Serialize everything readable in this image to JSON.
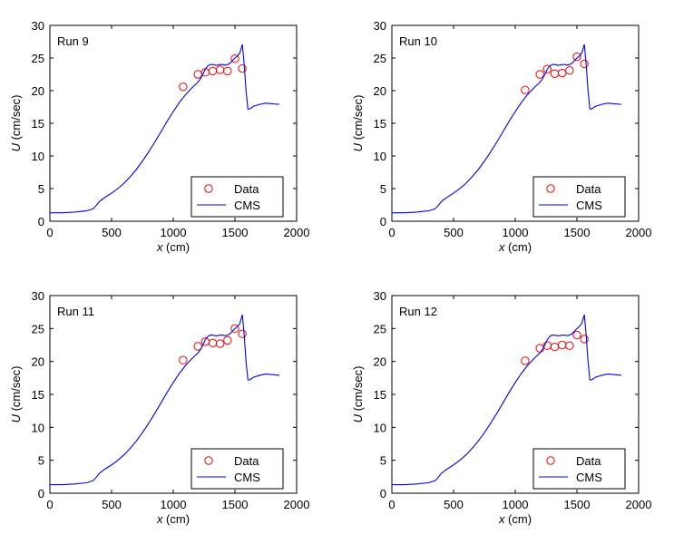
{
  "chart_data": [
    {
      "type": "line",
      "title": "Run 9",
      "xlabel_var": "x",
      "xlabel_unit": " (cm)",
      "ylabel_var": "U",
      "ylabel_unit": " (cm/sec)",
      "xlim": [
        0,
        2000
      ],
      "ylim": [
        0,
        30
      ],
      "xticks": [
        "0",
        "500",
        "1000",
        "1500",
        "2000"
      ],
      "yticks": [
        "0",
        "5",
        "10",
        "15",
        "20",
        "25",
        "30"
      ],
      "legend": {
        "location": "bottom-right",
        "entries": [
          "Data",
          "CMS"
        ]
      },
      "series": [
        {
          "name": "Data",
          "kind": "scatter",
          "color": "#ff0000",
          "x": [
            1080,
            1200,
            1260,
            1320,
            1380,
            1440,
            1500,
            1560
          ],
          "y": [
            20.6,
            22.5,
            22.8,
            23.0,
            23.2,
            23.0,
            24.9,
            23.4
          ]
        },
        {
          "name": "CMS",
          "kind": "line",
          "color": "#0000ff",
          "x": [
            0,
            100,
            200,
            300,
            350,
            380,
            400,
            420,
            450,
            500,
            550,
            600,
            650,
            700,
            750,
            800,
            850,
            900,
            950,
            1000,
            1050,
            1100,
            1150,
            1200,
            1220,
            1240,
            1260,
            1280,
            1300,
            1320,
            1340,
            1360,
            1380,
            1400,
            1420,
            1440,
            1460,
            1480,
            1500,
            1520,
            1540,
            1560,
            1575,
            1590,
            1605,
            1620,
            1650,
            1700,
            1750,
            1800,
            1860
          ],
          "y": [
            1.3,
            1.3,
            1.4,
            1.6,
            1.9,
            2.5,
            3.0,
            3.3,
            3.7,
            4.3,
            5.0,
            5.8,
            6.8,
            7.9,
            9.2,
            10.6,
            12.1,
            13.7,
            15.3,
            16.8,
            18.2,
            19.4,
            20.4,
            21.3,
            21.8,
            22.5,
            23.3,
            23.8,
            24.0,
            24.0,
            23.9,
            23.9,
            24.0,
            24.0,
            23.9,
            24.0,
            24.2,
            24.6,
            25.0,
            25.3,
            25.8,
            27.1,
            24.0,
            20.0,
            17.2,
            17.2,
            17.6,
            17.9,
            18.1,
            18.0,
            17.9
          ]
        }
      ]
    },
    {
      "type": "line",
      "title": "Run 10",
      "xlabel_var": "x",
      "xlabel_unit": " (cm)",
      "ylabel_var": "U",
      "ylabel_unit": " (cm/sec)",
      "xlim": [
        0,
        2000
      ],
      "ylim": [
        0,
        30
      ],
      "xticks": [
        "0",
        "500",
        "1000",
        "1500",
        "2000"
      ],
      "yticks": [
        "0",
        "5",
        "10",
        "15",
        "20",
        "25",
        "30"
      ],
      "legend": {
        "location": "bottom-right",
        "entries": [
          "Data",
          "CMS"
        ]
      },
      "series": [
        {
          "name": "Data",
          "kind": "scatter",
          "color": "#ff0000",
          "x": [
            1080,
            1200,
            1260,
            1320,
            1380,
            1440,
            1500,
            1560
          ],
          "y": [
            20.1,
            22.5,
            23.3,
            22.6,
            22.7,
            23.1,
            25.2,
            24.1
          ]
        },
        {
          "name": "CMS",
          "kind": "line",
          "color": "#0000ff",
          "x": [
            0,
            100,
            200,
            300,
            350,
            380,
            400,
            420,
            450,
            500,
            550,
            600,
            650,
            700,
            750,
            800,
            850,
            900,
            950,
            1000,
            1050,
            1100,
            1150,
            1200,
            1220,
            1240,
            1260,
            1280,
            1300,
            1320,
            1340,
            1360,
            1380,
            1400,
            1420,
            1440,
            1460,
            1480,
            1500,
            1520,
            1540,
            1560,
            1575,
            1590,
            1605,
            1620,
            1650,
            1700,
            1750,
            1800,
            1860
          ],
          "y": [
            1.3,
            1.3,
            1.4,
            1.6,
            1.9,
            2.5,
            3.0,
            3.3,
            3.7,
            4.3,
            5.0,
            5.8,
            6.8,
            7.9,
            9.2,
            10.6,
            12.1,
            13.7,
            15.3,
            16.8,
            18.2,
            19.4,
            20.4,
            21.3,
            21.8,
            22.5,
            23.3,
            23.8,
            24.0,
            24.0,
            23.9,
            23.9,
            24.0,
            24.0,
            23.9,
            24.0,
            24.2,
            24.6,
            25.0,
            25.3,
            25.8,
            27.1,
            24.0,
            20.0,
            17.2,
            17.2,
            17.6,
            17.9,
            18.1,
            18.0,
            17.9
          ]
        }
      ]
    },
    {
      "type": "line",
      "title": "Run 11",
      "xlabel_var": "x",
      "xlabel_unit": " (cm)",
      "ylabel_var": "U",
      "ylabel_unit": " (cm/sec)",
      "xlim": [
        0,
        2000
      ],
      "ylim": [
        0,
        30
      ],
      "xticks": [
        "0",
        "500",
        "1000",
        "1500",
        "2000"
      ],
      "yticks": [
        "0",
        "5",
        "10",
        "15",
        "20",
        "25",
        "30"
      ],
      "legend": {
        "location": "bottom-right",
        "entries": [
          "Data",
          "CMS"
        ]
      },
      "series": [
        {
          "name": "Data",
          "kind": "scatter",
          "color": "#ff0000",
          "x": [
            1080,
            1200,
            1260,
            1320,
            1380,
            1440,
            1500,
            1560
          ],
          "y": [
            20.2,
            22.3,
            23.0,
            22.8,
            22.7,
            23.2,
            25.0,
            24.2
          ]
        },
        {
          "name": "CMS",
          "kind": "line",
          "color": "#0000ff",
          "x": [
            0,
            100,
            200,
            300,
            350,
            380,
            400,
            420,
            450,
            500,
            550,
            600,
            650,
            700,
            750,
            800,
            850,
            900,
            950,
            1000,
            1050,
            1100,
            1150,
            1200,
            1220,
            1240,
            1260,
            1280,
            1300,
            1320,
            1340,
            1360,
            1380,
            1400,
            1420,
            1440,
            1460,
            1480,
            1500,
            1520,
            1540,
            1560,
            1575,
            1590,
            1605,
            1620,
            1650,
            1700,
            1750,
            1800,
            1860
          ],
          "y": [
            1.3,
            1.3,
            1.4,
            1.6,
            1.9,
            2.5,
            3.0,
            3.3,
            3.7,
            4.3,
            5.0,
            5.8,
            6.8,
            7.9,
            9.2,
            10.6,
            12.1,
            13.7,
            15.3,
            16.8,
            18.2,
            19.4,
            20.4,
            21.3,
            21.8,
            22.5,
            23.3,
            23.8,
            24.0,
            24.0,
            23.9,
            23.9,
            24.0,
            24.0,
            23.9,
            24.0,
            24.2,
            24.6,
            25.0,
            25.3,
            25.8,
            27.1,
            24.0,
            20.0,
            17.2,
            17.2,
            17.6,
            17.9,
            18.1,
            18.0,
            17.9
          ]
        }
      ]
    },
    {
      "type": "line",
      "title": "Run 12",
      "xlabel_var": "x",
      "xlabel_unit": " (cm)",
      "ylabel_var": "U",
      "ylabel_unit": " (cm/sec)",
      "xlim": [
        0,
        2000
      ],
      "ylim": [
        0,
        30
      ],
      "xticks": [
        "0",
        "500",
        "1000",
        "1500",
        "2000"
      ],
      "yticks": [
        "0",
        "5",
        "10",
        "15",
        "20",
        "25",
        "30"
      ],
      "legend": {
        "location": "bottom-right",
        "entries": [
          "Data",
          "CMS"
        ]
      },
      "series": [
        {
          "name": "Data",
          "kind": "scatter",
          "color": "#ff0000",
          "x": [
            1080,
            1200,
            1260,
            1320,
            1380,
            1440,
            1500,
            1560
          ],
          "y": [
            20.1,
            22.0,
            22.4,
            22.2,
            22.5,
            22.4,
            24.0,
            23.4
          ]
        },
        {
          "name": "CMS",
          "kind": "line",
          "color": "#0000ff",
          "x": [
            0,
            100,
            200,
            300,
            350,
            380,
            400,
            420,
            450,
            500,
            550,
            600,
            650,
            700,
            750,
            800,
            850,
            900,
            950,
            1000,
            1050,
            1100,
            1150,
            1200,
            1220,
            1240,
            1260,
            1280,
            1300,
            1320,
            1340,
            1360,
            1380,
            1400,
            1420,
            1440,
            1460,
            1480,
            1500,
            1520,
            1540,
            1560,
            1575,
            1590,
            1605,
            1620,
            1650,
            1700,
            1750,
            1800,
            1860
          ],
          "y": [
            1.3,
            1.3,
            1.4,
            1.6,
            1.9,
            2.5,
            3.0,
            3.3,
            3.7,
            4.3,
            5.0,
            5.8,
            6.8,
            7.9,
            9.2,
            10.6,
            12.1,
            13.7,
            15.3,
            16.8,
            18.2,
            19.4,
            20.4,
            21.3,
            21.8,
            22.5,
            23.3,
            23.8,
            24.0,
            24.0,
            23.9,
            23.9,
            24.0,
            24.0,
            23.9,
            24.0,
            24.2,
            24.6,
            25.0,
            25.3,
            25.8,
            27.1,
            24.0,
            20.0,
            17.2,
            17.2,
            17.6,
            17.9,
            18.1,
            18.0,
            17.9
          ]
        }
      ]
    }
  ]
}
